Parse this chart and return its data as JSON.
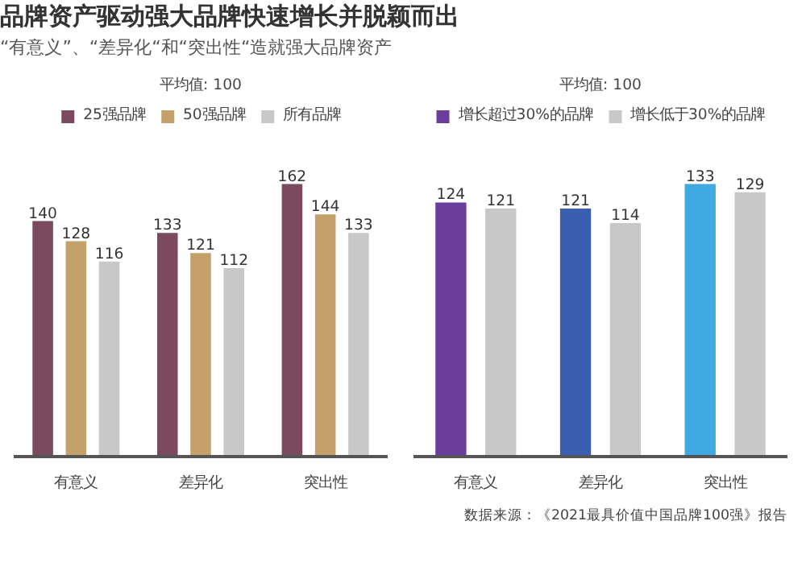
{
  "chart_data": [
    {
      "type": "bar",
      "title": "品牌资产驱动强大品牌快速增长并脱颖而出",
      "subtitle": "“有意义”、“差异化“和“突出性“造就强大品牌资产",
      "categories": [
        "有意义",
        "差异化",
        "突出性"
      ],
      "series": [
        {
          "name": "25强品牌",
          "color": "#7b4a5e",
          "values": [
            140,
            133,
            162
          ]
        },
        {
          "name": "50强品牌",
          "color": "#c4a16a",
          "values": [
            128,
            121,
            144
          ]
        },
        {
          "name": "所有品牌",
          "color": "#c8c8c8",
          "values": [
            116,
            112,
            133
          ]
        }
      ],
      "data_labels": true,
      "legend": "top",
      "tick_labels": "x",
      "grid": false,
      "annotations": [
        "平均值: 100"
      ]
    },
    {
      "type": "bar",
      "categories": [
        "有意义",
        "差异化",
        "突出性"
      ],
      "series": [
        {
          "name": "增长超过30%的品牌",
          "color": "#6a3d9a",
          "colors": [
            "#6a3d9a",
            "#3a5fb0",
            "#3fa9e0"
          ],
          "values": [
            124,
            121,
            133
          ]
        },
        {
          "name": "增长低于30%的品牌",
          "color": "#c8c8c8",
          "values": [
            121,
            114,
            129
          ]
        }
      ],
      "data_labels": true,
      "legend": "top",
      "tick_labels": "x",
      "grid": false,
      "annotations": [
        "平均值: 100",
        "数据来源：《2021最具价值中国品牌100强》报告"
      ]
    }
  ]
}
